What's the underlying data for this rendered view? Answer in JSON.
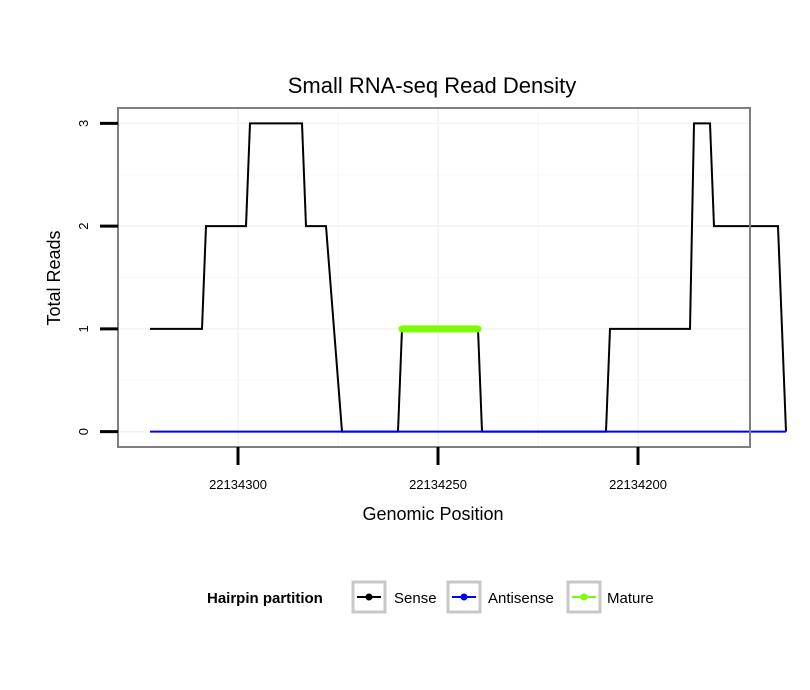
{
  "chart_data": {
    "type": "line",
    "title": "Small RNA-seq Read Density",
    "xlabel": "Genomic Position",
    "ylabel": "Total Reads",
    "xlim": [
      22134330,
      22134172
    ],
    "ylim": [
      -0.15,
      3.15
    ],
    "x_reversed": true,
    "x_ticks": [
      22134300,
      22134250,
      22134200
    ],
    "x_tick_labels": [
      "22134300",
      "22134250",
      "22134200"
    ],
    "y_ticks": [
      0,
      1,
      2,
      3
    ],
    "y_tick_labels": [
      "0",
      "1",
      "2",
      "3"
    ],
    "grid": true,
    "legend": {
      "title": "Hairpin partition",
      "position": "bottom",
      "entries": [
        "Sense",
        "Antisense",
        "Mature"
      ]
    },
    "series": [
      {
        "name": "Sense",
        "color": "#000000",
        "x": [
          22134322,
          22134309,
          22134308,
          22134298,
          22134297,
          22134284,
          22134283,
          22134278,
          22134274,
          22134260,
          22134259,
          22134240,
          22134239,
          22134208,
          22134207,
          22134187,
          22134186,
          22134182,
          22134181,
          22134165,
          22134163
        ],
        "y": [
          1,
          1,
          2,
          2,
          3,
          3,
          2,
          2,
          0,
          0,
          1,
          1,
          0,
          0,
          1,
          1,
          3,
          3,
          2,
          2,
          0
        ]
      },
      {
        "name": "Antisense",
        "color": "#0000ff",
        "x": [
          22134322,
          22134163
        ],
        "y": [
          0,
          0
        ]
      },
      {
        "name": "Mature",
        "color": "#7cfc00",
        "x": [
          22134259,
          22134240
        ],
        "y": [
          1,
          1
        ]
      }
    ]
  }
}
